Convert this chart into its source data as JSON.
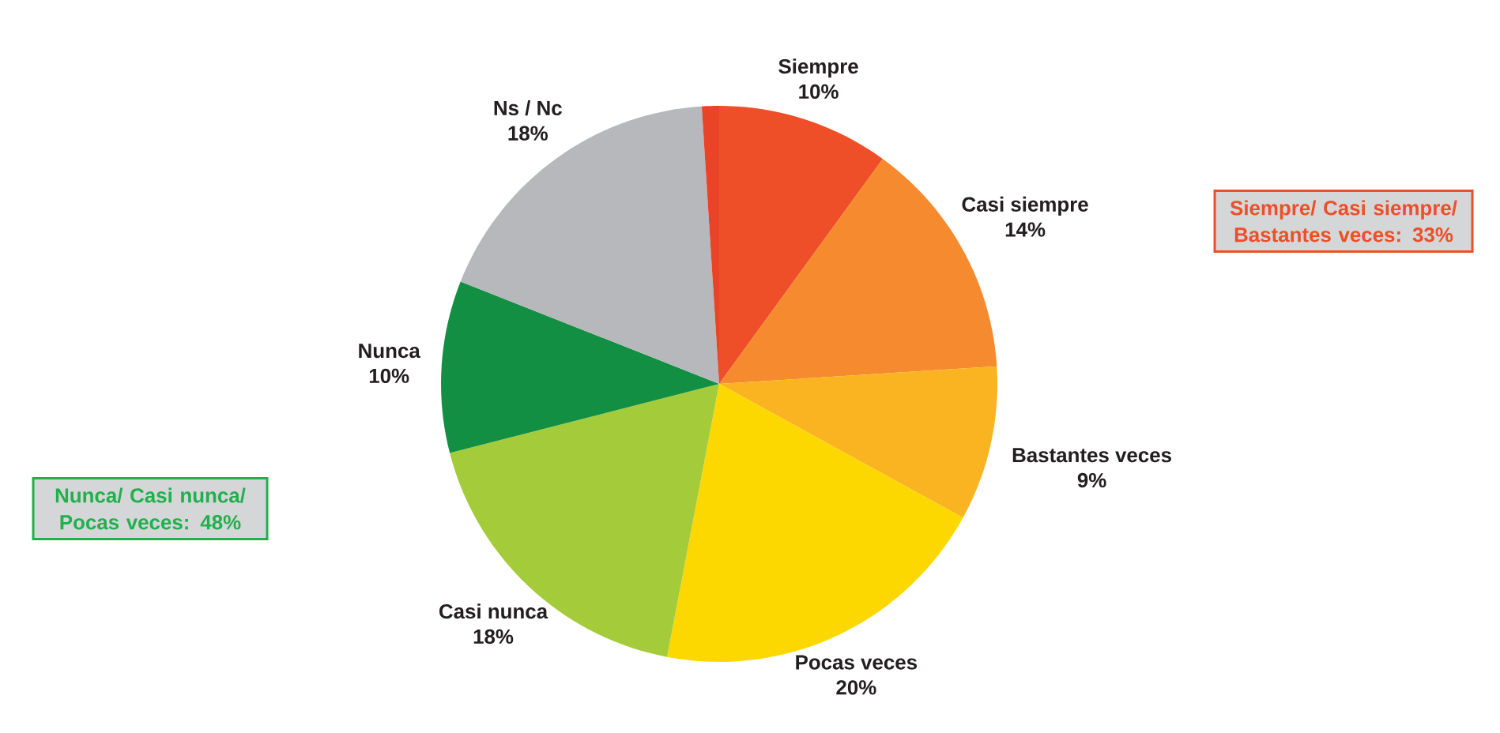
{
  "chart_data": {
    "type": "pie",
    "categories": [
      "Siempre",
      "Casi siempre",
      "Bastantes veces",
      "Pocas veces",
      "Casi nunca",
      "Nunca",
      "Ns / Nc",
      null
    ],
    "values": [
      10,
      14,
      9,
      20,
      18,
      10,
      18,
      1
    ],
    "value_labels": [
      "10%",
      "14%",
      "9%",
      "20%",
      "18%",
      "10%",
      "18%",
      null
    ],
    "colors": [
      "#ee4e28",
      "#f58a2e",
      "#fbb421",
      "#fdd800",
      "#a4cc3a",
      "#138f43",
      "#b6b8bb",
      "#ea4428"
    ],
    "annotations": [
      "Siempre/ Casi siempre/ Bastantes veces: 33%",
      "Nunca/ Casi nunca/ Pocas veces: 48%"
    ]
  }
}
